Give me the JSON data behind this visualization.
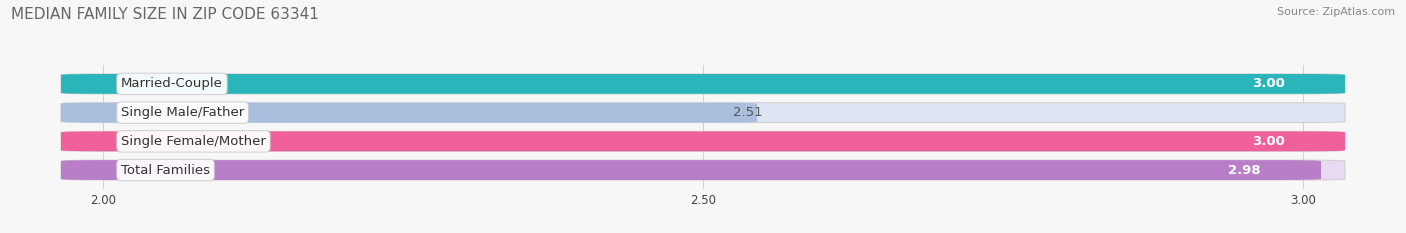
{
  "title": "MEDIAN FAMILY SIZE IN ZIP CODE 63341",
  "source": "Source: ZipAtlas.com",
  "categories": [
    "Married-Couple",
    "Single Male/Father",
    "Single Female/Mother",
    "Total Families"
  ],
  "values": [
    3.0,
    2.51,
    3.0,
    2.98
  ],
  "value_labels": [
    "3.00",
    "2.51",
    "3.00",
    "2.98"
  ],
  "bar_colors": [
    "#29b5ba",
    "#aabedd",
    "#f0609a",
    "#b87ec8"
  ],
  "bar_bg_colors": [
    "#e0eff0",
    "#dde5f5",
    "#f5dde8",
    "#e8daf0"
  ],
  "value_label_colors": [
    "#ffffff",
    "#555555",
    "#ffffff",
    "#ffffff"
  ],
  "xlim_min": 1.92,
  "xlim_max": 3.08,
  "data_min": 2.0,
  "data_max": 3.0,
  "xticks": [
    2.0,
    2.5,
    3.0
  ],
  "xtick_labels": [
    "2.00",
    "2.50",
    "3.00"
  ],
  "bar_height": 0.62,
  "bar_gap": 0.38,
  "background_color": "#f7f7f7",
  "title_fontsize": 11,
  "source_fontsize": 8,
  "label_fontsize": 9.5,
  "value_fontsize": 9.5
}
